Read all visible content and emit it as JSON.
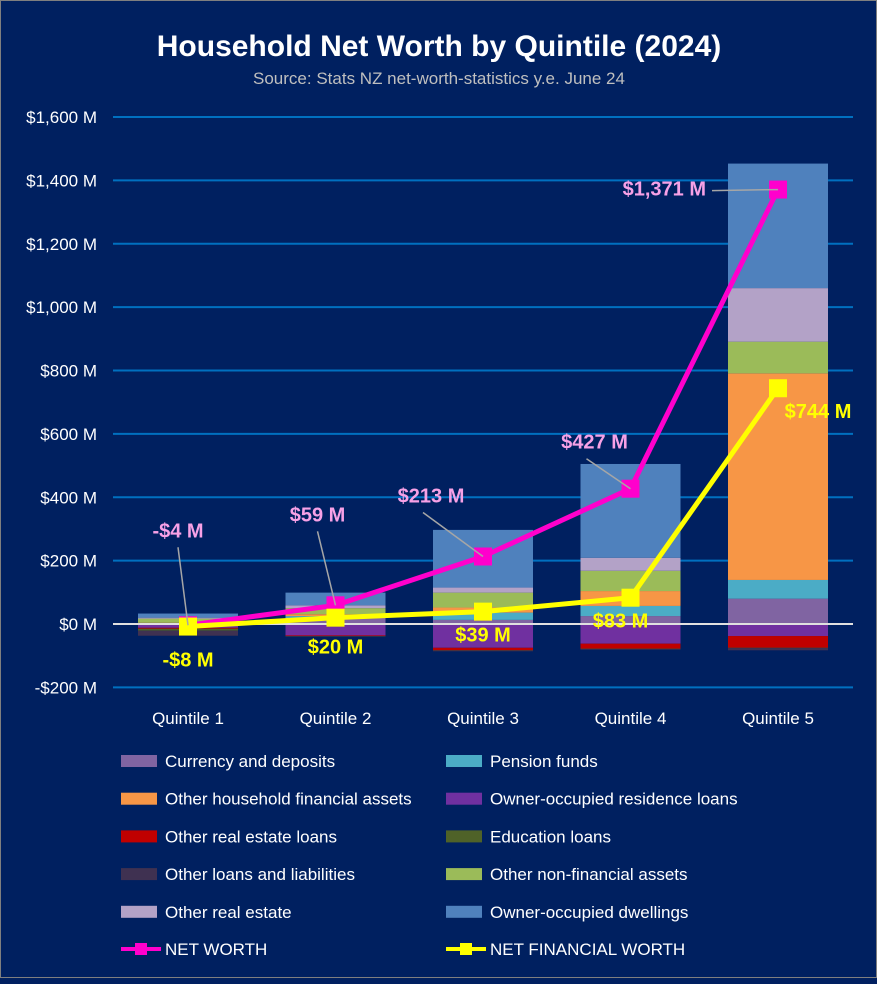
{
  "chart_data": {
    "type": "bar",
    "title": "Household Net Worth by Quintile (2024)",
    "subtitle": "Source: Stats NZ net-worth-statistics y.e. June 24",
    "xlabel": "",
    "ylabel": "",
    "ylim": [
      -200,
      1600
    ],
    "yticks": [
      -200,
      0,
      200,
      400,
      600,
      800,
      1000,
      1200,
      1400,
      1600
    ],
    "ytick_labels": [
      "-$200 M",
      "$0 M",
      "$200 M",
      "$400 M",
      "$600 M",
      "$800 M",
      "$1,000 M",
      "$1,200 M",
      "$1,400 M",
      "$1,600 M"
    ],
    "grid": true,
    "stacked": true,
    "legend_position": "bottom",
    "categories": [
      "Quintile 1",
      "Quintile 2",
      "Quintile 3",
      "Quintile 4",
      "Quintile 5"
    ],
    "series": [
      {
        "name": "Currency and deposits",
        "color": "#8064A2",
        "values": [
          2,
          19,
          13,
          25,
          80
        ]
      },
      {
        "name": "Pension funds",
        "color": "#4BACC6",
        "values": [
          1,
          6,
          23,
          32,
          59
        ]
      },
      {
        "name": "Other household financial assets",
        "color": "#F79646",
        "values": [
          1,
          6,
          16,
          47,
          652
        ]
      },
      {
        "name": "Owner-occupied residence loans",
        "color": "#7030A0",
        "values": [
          -12,
          -36,
          -75,
          -62,
          -38
        ]
      },
      {
        "name": "Other real estate loans",
        "color": "#C00000",
        "values": [
          -3,
          -2,
          -8,
          -16,
          -37
        ]
      },
      {
        "name": "Education loans",
        "color": "#4F6228",
        "values": [
          -6,
          -1,
          -1,
          -1,
          -1
        ]
      },
      {
        "name": "Other loans and liabilities",
        "color": "#3F3151",
        "values": [
          -16,
          -1,
          -2,
          -2,
          -7
        ]
      },
      {
        "name": "Other non-financial assets",
        "color": "#9BBB59",
        "values": [
          13,
          19,
          47,
          64,
          100
        ]
      },
      {
        "name": "Other real estate",
        "color": "#B3A2C7",
        "values": [
          3,
          9,
          16,
          41,
          169
        ]
      },
      {
        "name": "Owner-occupied dwellings",
        "color": "#4F81BD",
        "values": [
          13,
          40,
          182,
          296,
          393
        ]
      }
    ],
    "lines": [
      {
        "name": "NET WORTH",
        "color": "#FF00CC",
        "label_color": "#F7A1E6",
        "values": [
          -4,
          59,
          213,
          427,
          1371
        ],
        "labels": [
          "-$4 M",
          "$59 M",
          "$213 M",
          "$427 M",
          "$1,371 M"
        ]
      },
      {
        "name": "NET FINANCIAL WORTH",
        "color": "#FFFF00",
        "label_color": "#FFFF00",
        "values": [
          -8,
          20,
          39,
          83,
          744
        ],
        "labels": [
          "-$8 M",
          "$20 M",
          "$39 M",
          "$83 M",
          "$744 M"
        ]
      }
    ]
  }
}
